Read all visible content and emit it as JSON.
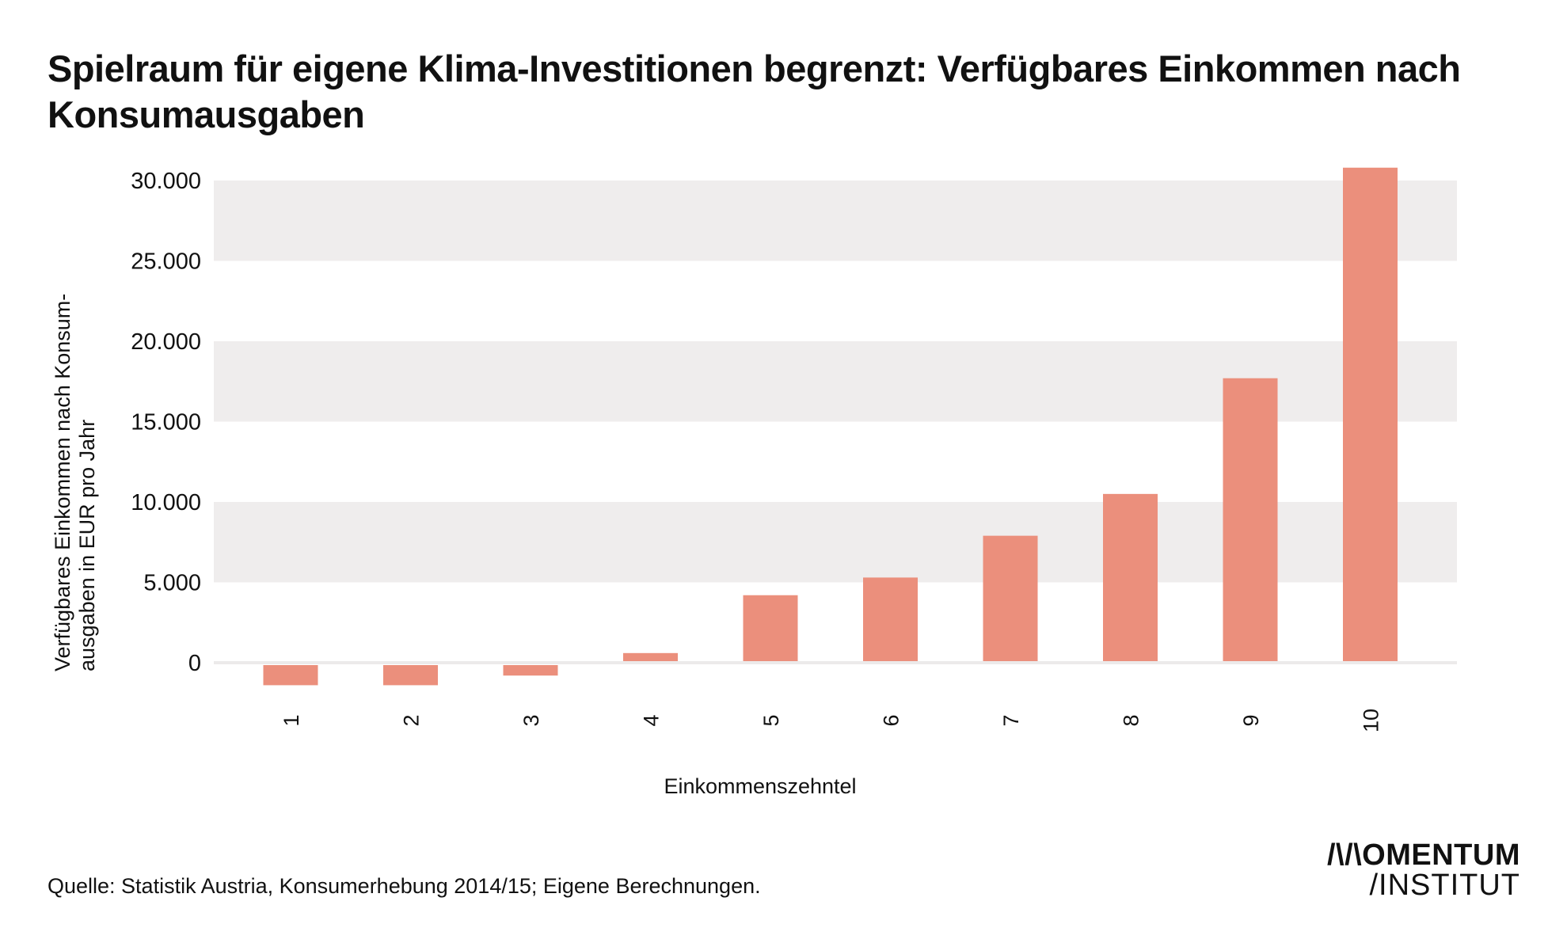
{
  "chart_data": {
    "type": "bar",
    "title": "Spielraum für eigene Klima-Investitionen begrenzt: Verfügbares Einkommen nach Konsumausgaben",
    "xlabel": "Einkommenszehntel",
    "ylabel": "Verfügbares Einkommen nach Konsum-ausgaben in EUR pro Jahr",
    "categories": [
      "1",
      "2",
      "3",
      "4",
      "5",
      "6",
      "7",
      "8",
      "9",
      "10"
    ],
    "values": [
      -1400,
      -1400,
      -800,
      600,
      4200,
      5300,
      7900,
      10500,
      17700,
      30800
    ],
    "ylim": [
      -2500,
      31000
    ],
    "yticks": [
      0,
      5000,
      10000,
      15000,
      20000,
      25000,
      30000
    ],
    "ytick_labels": [
      "0",
      "5.000",
      "10.000",
      "15.000",
      "20.000",
      "25.000",
      "30.000"
    ],
    "grid": "alternating horizontal bands",
    "bar_color": "#EB8F7C",
    "band_color": "#EFEDED"
  },
  "source": "Quelle: Statistik Austria, Konsumerhebung 2014/15; Eigene Berechnungen.",
  "logo": {
    "line1": "/\\/\\OMENTUM",
    "line2": "/INSTITUT"
  }
}
